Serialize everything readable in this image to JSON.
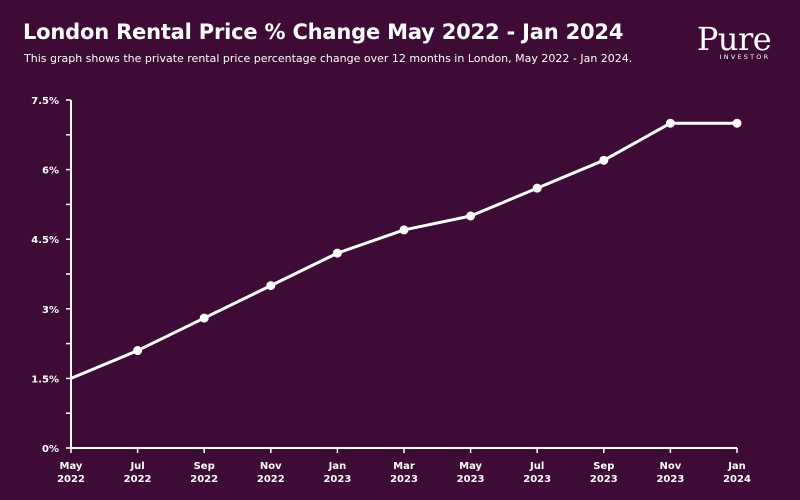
{
  "header": {
    "title": "London Rental Price % Change May 2022 - Jan 2024",
    "subtitle": "This graph shows the private rental price percentage change over 12 months in London, May 2022 - Jan 2024."
  },
  "logo": {
    "word": "Pure",
    "sub": "INVESTOR"
  },
  "colors": {
    "background": "#3d0b35",
    "line": "#ffffff",
    "text": "#ffffff"
  },
  "chart_data": {
    "type": "line",
    "title": "London Rental Price % Change May 2022 - Jan 2024",
    "xlabel": "",
    "ylabel": "",
    "x": [
      "May 2022",
      "Jul 2022",
      "Sep 2022",
      "Nov 2022",
      "Jan 2023",
      "Mar 2023",
      "May 2023",
      "Jul 2023",
      "Sep 2023",
      "Nov 2023",
      "Jan 2024"
    ],
    "x_tick_labels": [
      [
        "May",
        "2022"
      ],
      [
        "Jul",
        "2022"
      ],
      [
        "Sep",
        "2022"
      ],
      [
        "Nov",
        "2022"
      ],
      [
        "Jan",
        "2023"
      ],
      [
        "Mar",
        "2023"
      ],
      [
        "May",
        "2023"
      ],
      [
        "Jul",
        "2023"
      ],
      [
        "Sep",
        "2023"
      ],
      [
        "Nov",
        "2023"
      ],
      [
        "Jan",
        "2024"
      ]
    ],
    "series": [
      {
        "values": [
          1.5,
          2.1,
          2.8,
          3.5,
          4.2,
          4.7,
          5.0,
          5.6,
          6.2,
          7.0,
          7.0
        ]
      }
    ],
    "ylim": [
      0,
      7.5
    ],
    "y_ticks": [
      0,
      1.5,
      3,
      4.5,
      6,
      7.5
    ],
    "y_tick_labels": [
      "0%",
      "1.5%",
      "3%",
      "4.5%",
      "6%",
      "7.5%"
    ],
    "grid": false,
    "legend": "none"
  }
}
